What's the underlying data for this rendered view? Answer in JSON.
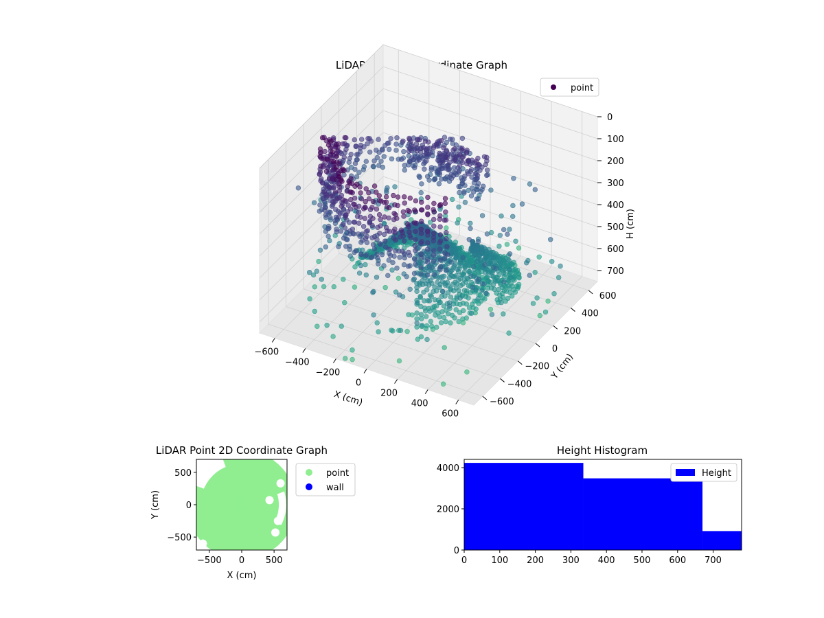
{
  "chart_data": [
    {
      "type": "scatter",
      "projection": "3d",
      "title": "LiDAR Point 3D Coordinate Graph",
      "xlabel": "X (cm)",
      "ylabel": "Y (cm)",
      "zlabel": "H (cm)",
      "xlim": [
        -700,
        700
      ],
      "ylim": [
        -700,
        700
      ],
      "zlim": [
        750,
        0
      ],
      "xticks": [
        -600,
        -400,
        -200,
        0,
        200,
        400,
        600
      ],
      "yticks": [
        -600,
        -400,
        -200,
        0,
        200,
        400,
        600
      ],
      "zticks": [
        0,
        100,
        200,
        300,
        400,
        500,
        600,
        700
      ],
      "grid": true,
      "legend": {
        "position": "top-right",
        "entries": [
          "point"
        ]
      },
      "colormap": "viridis",
      "color_by": "H",
      "series": [
        {
          "name": "point",
          "color": "#440154",
          "structures": [
            {
              "kind": "ring-wall",
              "center": [
                0,
                0
              ],
              "radius_range": [
                520,
                620
              ],
              "angle_range_deg": [
                100,
                310
              ],
              "h_range": [
                0,
                330
              ]
            },
            {
              "kind": "fan-floor",
              "origin": [
                -30,
                -80
              ],
              "radius_range": [
                0,
                420
              ],
              "angle_range_deg": [
                -60,
                180
              ],
              "h_range": [
                330,
                620
              ]
            },
            {
              "kind": "fan-floor",
              "origin": [
                200,
                80
              ],
              "radius_range": [
                0,
                320
              ],
              "angle_range_deg": [
                -20,
                60
              ],
              "h_range": [
                420,
                600
              ]
            },
            {
              "kind": "band",
              "center": [
                -60,
                300
              ],
              "h_range": [
                150,
                320
              ]
            },
            {
              "kind": "sparse",
              "count": 260,
              "h_range": [
                300,
                750
              ]
            }
          ]
        }
      ]
    },
    {
      "type": "scatter",
      "title": "LiDAR Point 2D Coordinate Graph",
      "xlabel": "X (cm)",
      "ylabel": "Y (cm)",
      "xlim": [
        -700,
        700
      ],
      "ylim": [
        -700,
        700
      ],
      "xticks": [
        -500,
        0,
        500
      ],
      "yticks": [
        -500,
        0,
        500
      ],
      "legend": {
        "position": "outside-right",
        "entries": [
          "point",
          "wall"
        ]
      },
      "series": [
        {
          "name": "point",
          "color": "#90ee90"
        },
        {
          "name": "wall",
          "color": "#0000ff"
        }
      ]
    },
    {
      "type": "bar",
      "subtype": "histogram",
      "title": "Height Histogram",
      "xlim": [
        0,
        780
      ],
      "ylim": [
        0,
        4400
      ],
      "xticks": [
        0,
        100,
        200,
        300,
        400,
        500,
        600,
        700
      ],
      "yticks": [
        0,
        2000,
        4000
      ],
      "legend": {
        "position": "top-right",
        "entries": [
          "Height"
        ]
      },
      "series": [
        {
          "name": "Height",
          "color": "#0000ff",
          "bins": [
            {
              "from": 0,
              "to": 335,
              "count": 4230
            },
            {
              "from": 335,
              "to": 670,
              "count": 3480
            },
            {
              "from": 670,
              "to": 780,
              "count": 920
            }
          ]
        }
      ]
    }
  ]
}
